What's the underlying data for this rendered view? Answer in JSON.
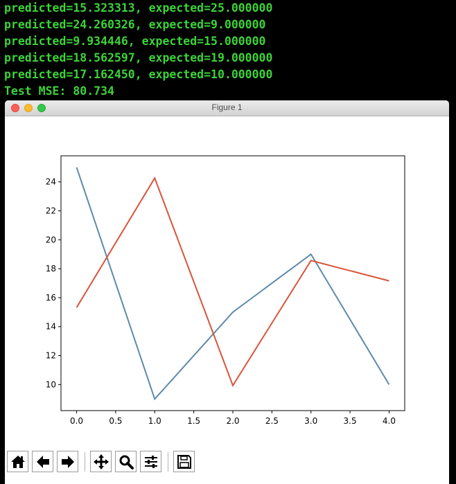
{
  "terminal": {
    "lines": [
      "predicted=15.323313, expected=25.000000",
      "predicted=24.260326, expected=9.000000",
      "predicted=9.934446, expected=15.000000",
      "predicted=18.562597, expected=19.000000",
      "predicted=17.162450, expected=10.000000",
      "Test MSE: 80.734"
    ]
  },
  "window": {
    "title": "Figure 1"
  },
  "toolbar": {
    "buttons": [
      "home-icon",
      "back-arrow-icon",
      "forward-arrow-icon",
      "pan-icon",
      "zoom-icon",
      "sliders-icon",
      "save-icon"
    ]
  },
  "colors": {
    "terminal_text": "#3dd23a",
    "expected_line": "#5d89a9",
    "predicted_line": "#d9543a"
  },
  "chart_data": {
    "type": "line",
    "x": [
      0,
      1,
      2,
      3,
      4
    ],
    "series": [
      {
        "values": [
          25,
          9,
          15,
          19,
          10
        ],
        "color": "#5d89a9"
      },
      {
        "values": [
          15.323313,
          24.260326,
          9.934446,
          18.562597,
          17.16245
        ],
        "color": "#d9543a"
      }
    ],
    "xlim": [
      -0.2,
      4.2
    ],
    "ylim": [
      8.2,
      25.8
    ],
    "xticks": [
      0,
      0.5,
      1,
      1.5,
      2,
      2.5,
      3,
      3.5,
      4
    ],
    "xtick_labels": [
      "0.0",
      "0.5",
      "1.0",
      "1.5",
      "2.0",
      "2.5",
      "3.0",
      "3.5",
      "4.0"
    ],
    "yticks": [
      10,
      12,
      14,
      16,
      18,
      20,
      22,
      24
    ],
    "ytick_labels": [
      "10",
      "12",
      "14",
      "16",
      "18",
      "20",
      "22",
      "24"
    ],
    "grid": false,
    "title": "",
    "xlabel": "",
    "ylabel": ""
  }
}
